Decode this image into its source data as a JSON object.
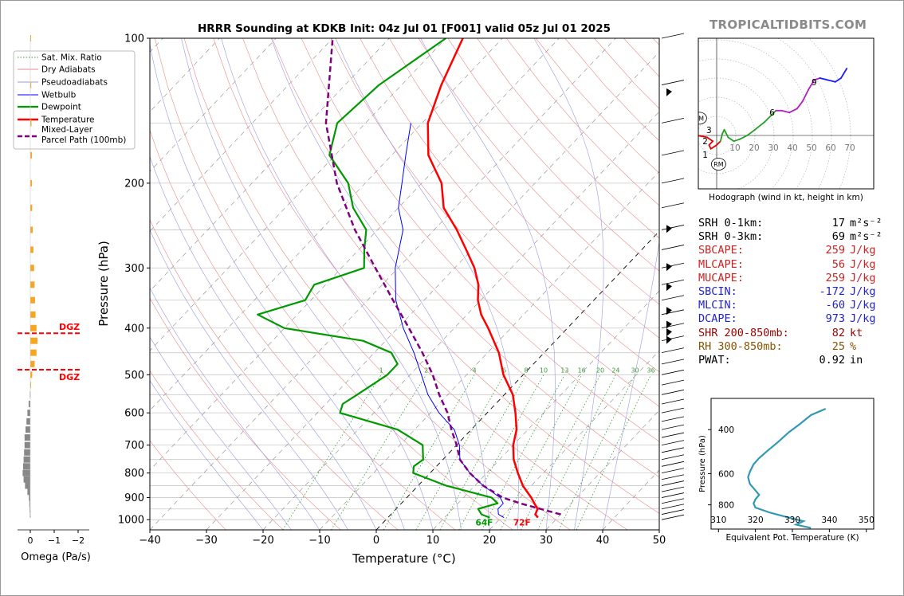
{
  "title": "HRRR Sounding at KDKB Init: 04z Jul 01 [F001] valid 05z Jul 01 2025",
  "brand": "TROPICALTIDBITS.COM",
  "colors": {
    "temperature": "#ff0000",
    "dewpoint": "#009900",
    "wetbulb": "#0000ff",
    "parcel": "#800080",
    "dry_adiabat": "#e88a8a",
    "pseudoadiabat": "#9999dd",
    "mixing_ratio": "#3a9a3a",
    "dgz": "#ff0000",
    "omega_pos": "#f5a623",
    "omega_neg": "#888888",
    "theta_e": "#3399b3"
  },
  "skewt": {
    "xlabel": "Temperature (°C)",
    "ylabel": "Pressure (hPa)",
    "xlim": [
      -40,
      50
    ],
    "ylim": [
      1050,
      100
    ],
    "xticks": [
      "−40",
      "−30",
      "−20",
      "−10",
      "0",
      "10",
      "20",
      "30",
      "40",
      "50"
    ],
    "yticks": [
      "100",
      "200",
      "300",
      "400",
      "500",
      "600",
      "700",
      "800",
      "900",
      "1000"
    ],
    "mixing_ratio_labels": [
      "1",
      "2",
      "4",
      "6",
      "8",
      "10",
      "13",
      "16",
      "20",
      "24",
      "30",
      "36"
    ],
    "surface_dewpoint_label": "64F",
    "surface_temp_label": "72F",
    "legend": [
      "Sat. Mix. Ratio",
      "Dry Adiabats",
      "Pseudoadiabats",
      "Wetbulb",
      "Dewpoint",
      "Temperature",
      "Mixed-Layer\nParcel Path (100mb)"
    ]
  },
  "omega": {
    "xlabel": "Omega (Pa/s)",
    "xticks": [
      "0",
      "−1",
      "−2"
    ],
    "dgz_label": "DGZ"
  },
  "hodograph": {
    "caption": "Hodograph (wind in kt, height in km)",
    "ring_labels": [
      "10",
      "20",
      "30",
      "40",
      "50",
      "60",
      "70"
    ],
    "height_labels": [
      "1",
      "2",
      "3",
      "6",
      "9"
    ],
    "motion_labels": [
      "LM",
      "RM"
    ]
  },
  "thetae": {
    "xlabel": "Equivalent Pot. Temperature (K)",
    "ylabel": "Pressure (hPa)",
    "xticks": [
      "310",
      "320",
      "330",
      "340",
      "350"
    ],
    "yticks": [
      "400",
      "600",
      "800"
    ]
  },
  "params": [
    {
      "label": "SRH 0-1km:",
      "value": "17",
      "unit": "m²s⁻²",
      "color": "#000000"
    },
    {
      "label": "SRH 0-3km:",
      "value": "69",
      "unit": "m²s⁻²",
      "color": "#000000"
    },
    {
      "label": "SBCAPE:",
      "value": "259",
      "unit": "J/kg",
      "color": "#cc2222"
    },
    {
      "label": "MLCAPE:",
      "value": "56",
      "unit": "J/kg",
      "color": "#cc2222"
    },
    {
      "label": "MUCAPE:",
      "value": "259",
      "unit": "J/kg",
      "color": "#cc2222"
    },
    {
      "label": "SBCIN:",
      "value": "-172",
      "unit": "J/kg",
      "color": "#2222cc"
    },
    {
      "label": "MLCIN:",
      "value": "-60",
      "unit": "J/kg",
      "color": "#2222cc"
    },
    {
      "label": "DCAPE:",
      "value": "973",
      "unit": "J/kg",
      "color": "#2222cc"
    },
    {
      "label": "SHR 200-850mb:",
      "value": "82",
      "unit": "kt",
      "color": "#990000"
    },
    {
      "label": "RH 300-850mb:",
      "value": "25",
      "unit": "%",
      "color": "#885500"
    },
    {
      "label": "PWAT:",
      "value": "0.92",
      "unit": "in",
      "color": "#000000"
    }
  ],
  "chart_data": [
    {
      "type": "line",
      "title": "HRRR Sounding at KDKB Init: 04z Jul 01 [F001] valid 05z Jul 01 2025",
      "xlabel": "Temperature (°C)",
      "ylabel": "Pressure (hPa)",
      "xlim": [
        -40,
        50
      ],
      "ylim": [
        1050,
        100
      ],
      "grid": true,
      "legend_position": "top-left",
      "series": [
        {
          "name": "Temperature",
          "points": [
            [
              990,
              26.5
            ],
            [
              975,
              25.5
            ],
            [
              950,
              25
            ],
            [
              925,
              23.5
            ],
            [
              900,
              22
            ],
            [
              850,
              18.5
            ],
            [
              800,
              15.5
            ],
            [
              750,
              12.5
            ],
            [
              700,
              10
            ],
            [
              650,
              8
            ],
            [
              600,
              5
            ],
            [
              550,
              1.5
            ],
            [
              500,
              -3.5
            ],
            [
              450,
              -8
            ],
            [
              400,
              -14
            ],
            [
              375,
              -17.5
            ],
            [
              350,
              -20.5
            ],
            [
              325,
              -23
            ],
            [
              300,
              -26.5
            ],
            [
              275,
              -31
            ],
            [
              250,
              -36
            ],
            [
              225,
              -42
            ],
            [
              200,
              -46.5
            ],
            [
              175,
              -53.5
            ],
            [
              150,
              -59
            ],
            [
              125,
              -63
            ],
            [
              100,
              -67
            ]
          ]
        },
        {
          "name": "Dewpoint",
          "points": [
            [
              990,
              18
            ],
            [
              975,
              16
            ],
            [
              950,
              14.5
            ],
            [
              925,
              17
            ],
            [
              900,
              15
            ],
            [
              850,
              5
            ],
            [
              800,
              -3
            ],
            [
              775,
              -4
            ],
            [
              750,
              -3.5
            ],
            [
              700,
              -6
            ],
            [
              650,
              -13
            ],
            [
              600,
              -26
            ],
            [
              575,
              -27
            ],
            [
              550,
              -26
            ],
            [
              525,
              -25
            ],
            [
              500,
              -24
            ],
            [
              475,
              -24
            ],
            [
              450,
              -27
            ],
            [
              425,
              -34
            ],
            [
              400,
              -50
            ],
            [
              375,
              -57
            ],
            [
              350,
              -51
            ],
            [
              325,
              -52
            ],
            [
              300,
              -46
            ],
            [
              275,
              -49
            ],
            [
              250,
              -52
            ],
            [
              225,
              -58
            ],
            [
              200,
              -63
            ],
            [
              175,
              -71
            ],
            [
              150,
              -75
            ],
            [
              125,
              -74
            ],
            [
              100,
              -70
            ]
          ]
        },
        {
          "name": "Wetbulb",
          "points": [
            [
              990,
              20.5
            ],
            [
              975,
              19
            ],
            [
              950,
              18
            ],
            [
              925,
              18
            ],
            [
              900,
              16.5
            ],
            [
              850,
              11.5
            ],
            [
              800,
              7
            ],
            [
              750,
              3
            ],
            [
              700,
              0.5
            ],
            [
              650,
              -3
            ],
            [
              600,
              -8.5
            ],
            [
              550,
              -13.5
            ],
            [
              500,
              -18
            ],
            [
              450,
              -23
            ],
            [
              400,
              -29
            ],
            [
              350,
              -35
            ],
            [
              300,
              -40.5
            ],
            [
              250,
              -45.5
            ],
            [
              225,
              -50
            ],
            [
              200,
              -53.5
            ],
            [
              175,
              -57.5
            ],
            [
              150,
              -62
            ]
          ]
        },
        {
          "name": "Mixed-Layer Parcel Path (100mb)",
          "points": [
            [
              975,
              30
            ],
            [
              950,
              25.5
            ],
            [
              925,
              21
            ],
            [
              900,
              17
            ],
            [
              850,
              11.5
            ],
            [
              800,
              7
            ],
            [
              750,
              3
            ],
            [
              700,
              0
            ],
            [
              650,
              -3.5
            ],
            [
              600,
              -7
            ],
            [
              550,
              -11.5
            ],
            [
              500,
              -16
            ],
            [
              450,
              -21.5
            ],
            [
              400,
              -28
            ],
            [
              350,
              -35.5
            ],
            [
              300,
              -44
            ],
            [
              250,
              -54
            ],
            [
              200,
              -65
            ],
            [
              150,
              -77
            ],
            [
              100,
              -90
            ]
          ]
        }
      ]
    },
    {
      "type": "bar",
      "xlabel": "Omega (Pa/s)",
      "ylim": [
        1050,
        100
      ],
      "series": [
        {
          "name": "Omega",
          "points": [
            [
              100,
              -0.02
            ],
            [
              125,
              -0.04
            ],
            [
              150,
              -0.05
            ],
            [
              175,
              -0.07
            ],
            [
              200,
              -0.07
            ],
            [
              225,
              -0.08
            ],
            [
              250,
              -0.1
            ],
            [
              275,
              -0.13
            ],
            [
              300,
              -0.16
            ],
            [
              325,
              -0.18
            ],
            [
              350,
              -0.2
            ],
            [
              375,
              -0.22
            ],
            [
              400,
              -0.26
            ],
            [
              425,
              -0.3
            ],
            [
              450,
              -0.26
            ],
            [
              475,
              -0.18
            ],
            [
              500,
              -0.08
            ],
            [
              525,
              -0.02
            ],
            [
              550,
              0.02
            ],
            [
              575,
              0.07
            ],
            [
              600,
              0.12
            ],
            [
              625,
              0.16
            ],
            [
              650,
              0.2
            ],
            [
              675,
              0.24
            ],
            [
              700,
              0.24
            ],
            [
              725,
              0.26
            ],
            [
              750,
              0.28
            ],
            [
              775,
              0.3
            ],
            [
              800,
              0.32
            ],
            [
              825,
              0.28
            ],
            [
              850,
              0.22
            ],
            [
              875,
              0.12
            ],
            [
              900,
              0.06
            ],
            [
              925,
              0.04
            ],
            [
              950,
              0.03
            ],
            [
              975,
              0.02
            ]
          ]
        }
      ],
      "annotations": [
        {
          "text": "DGZ",
          "pressure": 410
        },
        {
          "text": "DGZ",
          "pressure": 488
        }
      ]
    },
    {
      "type": "line",
      "title": "Hodograph (wind in kt, height in km)",
      "rings_kt": [
        10,
        20,
        30,
        40,
        50,
        60,
        70
      ],
      "series": [
        {
          "name": "Hodograph",
          "points_uv_kt": [
            [
              -10,
              0
            ],
            [
              -5,
              -1
            ],
            [
              -2,
              -3
            ],
            [
              -4,
              -5
            ],
            [
              -3,
              -7
            ],
            [
              0,
              -5
            ],
            [
              2,
              -3
            ],
            [
              3,
              1
            ],
            [
              4,
              3
            ],
            [
              6,
              -1
            ],
            [
              9,
              -3
            ],
            [
              12,
              -2
            ],
            [
              16,
              0
            ],
            [
              20,
              3
            ],
            [
              25,
              7
            ],
            [
              29,
              11
            ],
            [
              31,
              13
            ],
            [
              34,
              13
            ],
            [
              38,
              12
            ],
            [
              42,
              14
            ],
            [
              45,
              18
            ],
            [
              48,
              24
            ],
            [
              51,
              29
            ],
            [
              54,
              30
            ],
            [
              58,
              29
            ],
            [
              62,
              28
            ],
            [
              65,
              30
            ],
            [
              68,
              35
            ]
          ]
        }
      ],
      "markers": [
        {
          "text": "1",
          "u": -6,
          "v": -10
        },
        {
          "text": "2",
          "u": -6,
          "v": -3
        },
        {
          "text": "3",
          "u": -4,
          "v": 3
        },
        {
          "text": "6",
          "u": 29,
          "v": 12
        },
        {
          "text": "9",
          "u": 51,
          "v": 28
        },
        {
          "text": "LM",
          "u": -9,
          "v": 9
        },
        {
          "text": "RM",
          "u": 1,
          "v": -15
        }
      ]
    },
    {
      "type": "line",
      "xlabel": "Equivalent Pot. Temperature (K)",
      "ylabel": "Pressure (hPa)",
      "xlim": [
        308,
        352
      ],
      "ylim": [
        1000,
        300
      ],
      "series": [
        {
          "name": "Equivalent Potential Temperature",
          "points": [
            [
              990,
              335
            ],
            [
              975,
              333
            ],
            [
              960,
              331
            ],
            [
              945,
              332
            ],
            [
              930,
              333
            ],
            [
              915,
              331
            ],
            [
              900,
              329
            ],
            [
              860,
              324
            ],
            [
              820,
              320
            ],
            [
              790,
              319.5
            ],
            [
              760,
              320
            ],
            [
              730,
              321
            ],
            [
              700,
              320
            ],
            [
              660,
              318.5
            ],
            [
              620,
              318
            ],
            [
              590,
              318.5
            ],
            [
              550,
              319.5
            ],
            [
              520,
              321
            ],
            [
              490,
              323
            ],
            [
              450,
              326
            ],
            [
              410,
              329
            ],
            [
              380,
              332
            ],
            [
              350,
              335
            ],
            [
              330,
              339
            ]
          ]
        }
      ]
    }
  ]
}
